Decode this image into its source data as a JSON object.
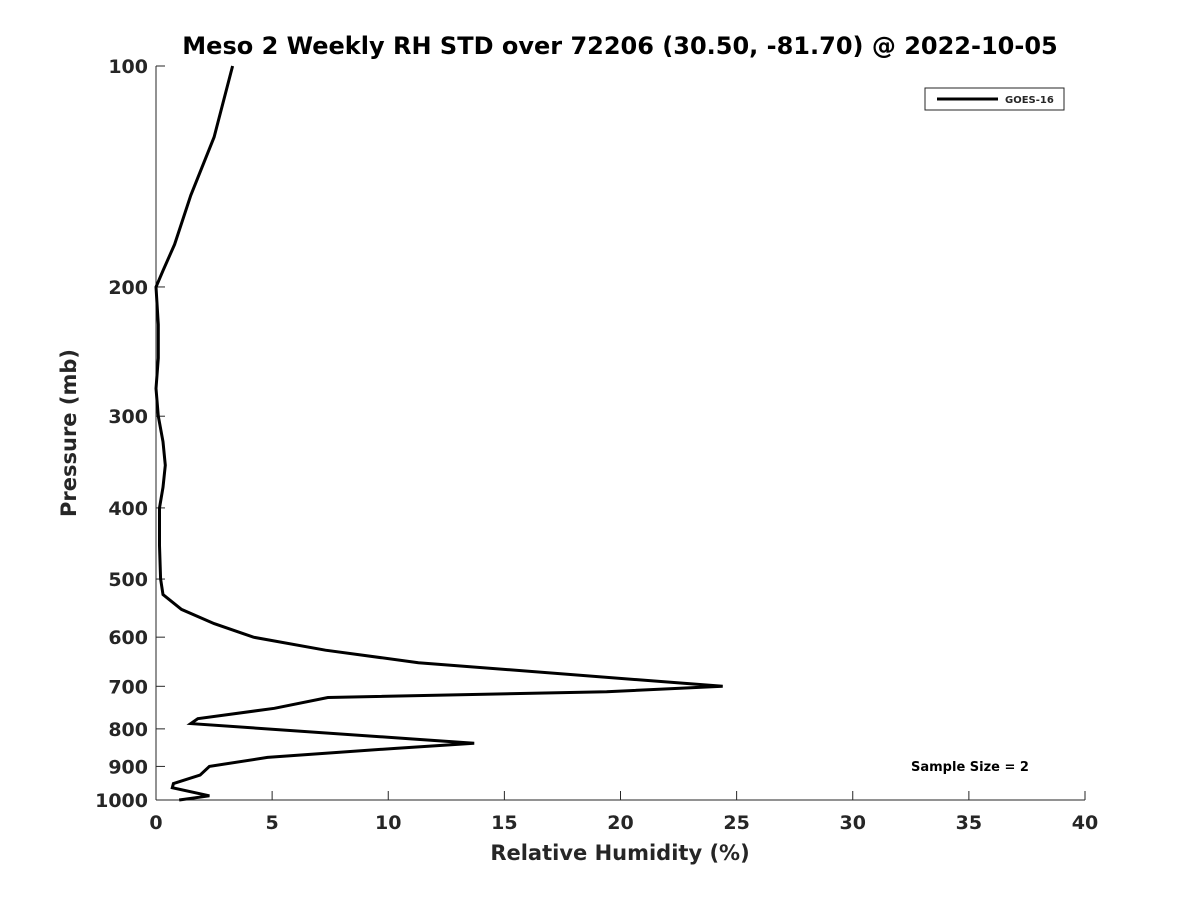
{
  "chart_data": {
    "type": "line",
    "title": "Meso 2 Weekly RH STD over 72206 (30.50, -81.70) @ 2022-10-05",
    "xlabel": "Relative Humidity (%)",
    "ylabel": "Pressure (mb)",
    "xlim": [
      0,
      40
    ],
    "ylim": [
      100,
      1000
    ],
    "y_scale": "log",
    "y_reversed": true,
    "x_ticks": [
      0,
      5,
      10,
      15,
      20,
      25,
      30,
      35,
      40
    ],
    "x_tick_labels": [
      "0",
      "5",
      "10",
      "15",
      "20",
      "25",
      "30",
      "35",
      "40"
    ],
    "y_ticks": [
      100,
      200,
      300,
      400,
      500,
      600,
      700,
      800,
      900,
      1000
    ],
    "y_tick_labels": [
      "100",
      "200",
      "300",
      "400",
      "500",
      "600",
      "700",
      "800",
      "900",
      "1000"
    ],
    "grid": false,
    "legend_position": "top-right",
    "annotation": "Sample Size = 2",
    "series": [
      {
        "name": "GOES-16",
        "color": "#000000",
        "points": [
          [
            3.3,
            100
          ],
          [
            2.5,
            125
          ],
          [
            1.5,
            150
          ],
          [
            0.8,
            175
          ],
          [
            0.3,
            190
          ],
          [
            0.0,
            200
          ],
          [
            0.1,
            225
          ],
          [
            0.1,
            250
          ],
          [
            0.0,
            275
          ],
          [
            0.1,
            300
          ],
          [
            0.3,
            325
          ],
          [
            0.4,
            350
          ],
          [
            0.3,
            375
          ],
          [
            0.15,
            400
          ],
          [
            0.15,
            450
          ],
          [
            0.2,
            500
          ],
          [
            0.3,
            525
          ],
          [
            1.1,
            550
          ],
          [
            2.5,
            575
          ],
          [
            4.2,
            600
          ],
          [
            7.3,
            625
          ],
          [
            11.3,
            650
          ],
          [
            24.4,
            700
          ],
          [
            19.4,
            712
          ],
          [
            7.4,
            725
          ],
          [
            5.1,
            750
          ],
          [
            1.8,
            775
          ],
          [
            1.5,
            787
          ],
          [
            10.9,
            825
          ],
          [
            13.7,
            837
          ],
          [
            10.4,
            850
          ],
          [
            4.8,
            875
          ],
          [
            2.3,
            900
          ],
          [
            1.9,
            925
          ],
          [
            0.75,
            950
          ],
          [
            0.7,
            962
          ],
          [
            2.3,
            987
          ],
          [
            1.0,
            1000
          ]
        ]
      }
    ]
  }
}
